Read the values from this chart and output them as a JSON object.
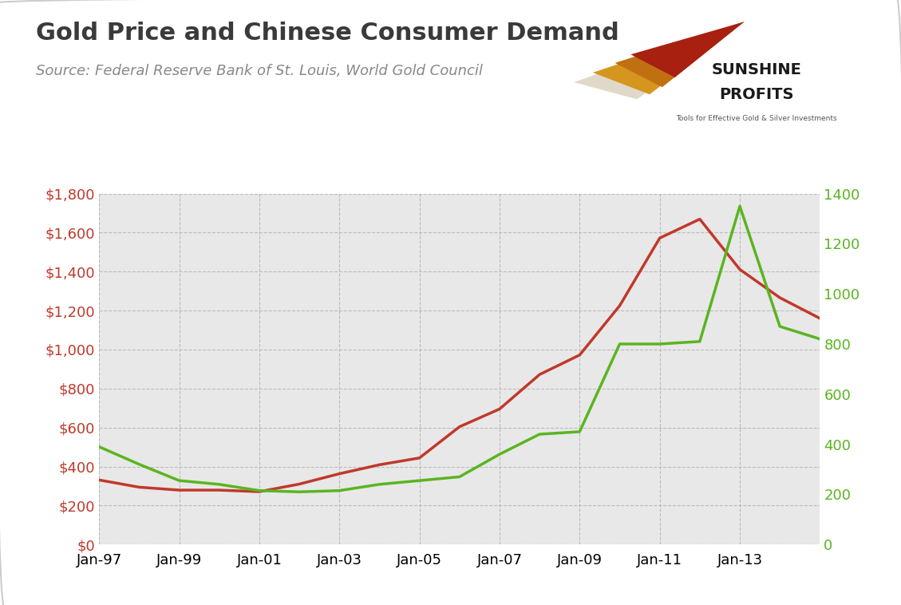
{
  "title": "Gold Price and Chinese Consumer Demand",
  "source": "Source: Federal Reserve Bank of St. Louis, World Gold Council",
  "years": [
    1997,
    1998,
    1999,
    2000,
    2001,
    2002,
    2003,
    2004,
    2005,
    2006,
    2007,
    2008,
    2009,
    2010,
    2011,
    2012,
    2013,
    2014,
    2015
  ],
  "gold_price": [
    331,
    294,
    279,
    279,
    271,
    310,
    363,
    409,
    444,
    604,
    695,
    872,
    972,
    1225,
    1572,
    1669,
    1411,
    1266,
    1160
  ],
  "chinese_demand": [
    390,
    320,
    255,
    240,
    215,
    210,
    215,
    240,
    255,
    270,
    360,
    440,
    450,
    800,
    800,
    810,
    1350,
    870,
    820
  ],
  "gold_color": "#c0392b",
  "demand_color": "#5ab520",
  "left_ylim": [
    0,
    1800
  ],
  "right_ylim": [
    0,
    1400
  ],
  "left_yticks": [
    0,
    200,
    400,
    600,
    800,
    1000,
    1200,
    1400,
    1600,
    1800
  ],
  "right_yticks": [
    0,
    200,
    400,
    600,
    800,
    1000,
    1200,
    1400
  ],
  "xtick_years": [
    1997,
    1999,
    2001,
    2003,
    2005,
    2007,
    2009,
    2011,
    2013
  ],
  "xtick_labels": [
    "Jan-97",
    "Jan-99",
    "Jan-01",
    "Jan-03",
    "Jan-05",
    "Jan-07",
    "Jan-09",
    "Jan-11",
    "Jan-13"
  ],
  "bg_color": "#e8e8e8",
  "outer_bg": "#ffffff",
  "line_width": 2.5,
  "title_fontsize": 22,
  "source_fontsize": 13,
  "tick_fontsize": 13,
  "logo_sunshine_fontsize": 15,
  "logo_profits_fontsize": 15,
  "logo_tagline_fontsize": 8
}
